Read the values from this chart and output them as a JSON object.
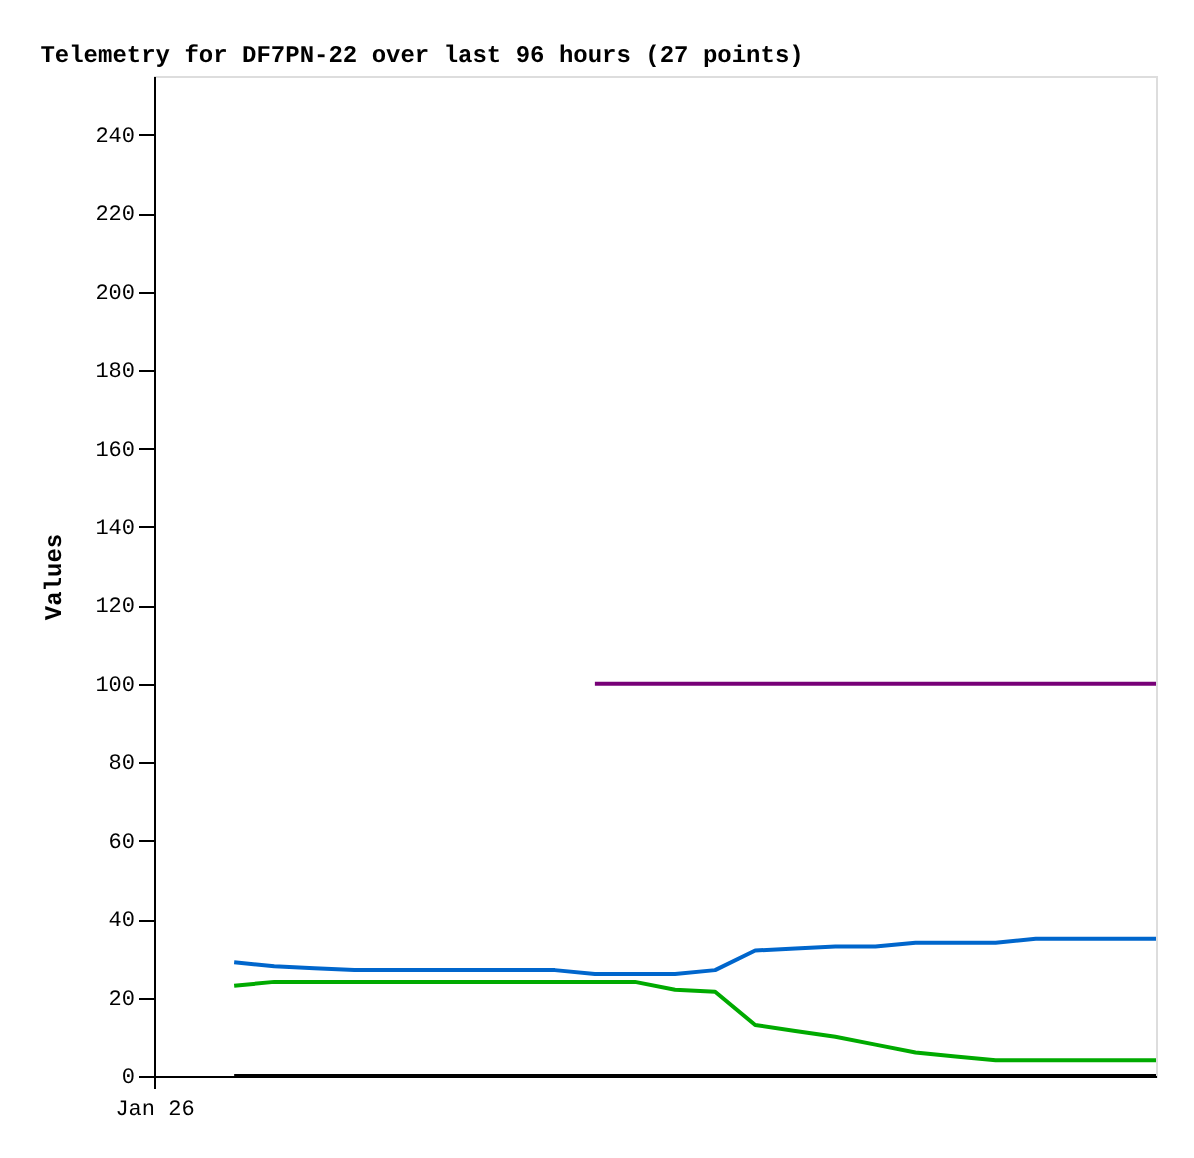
{
  "chart_data": {
    "type": "line",
    "title": "Telemetry for DF7PN-22 over last 96 hours (27 points)",
    "ylabel": "Values",
    "categories": [
      "Jan 26",
      null,
      null,
      null,
      null,
      null,
      null,
      null,
      null,
      null,
      null,
      null,
      null,
      null,
      null,
      null,
      null,
      null,
      null,
      null,
      null,
      null,
      null,
      null,
      null,
      null
    ],
    "series": [
      {
        "color": "#770077",
        "values": [
          null,
          null,
          null,
          null,
          null,
          null,
          null,
          null,
          null,
          null,
          null,
          100,
          100,
          100,
          100,
          100,
          100,
          100,
          100,
          100,
          100,
          100,
          100,
          100,
          100,
          100
        ]
      },
      {
        "color": "#0066cc",
        "values": [
          null,
          null,
          29,
          28,
          27.5,
          27,
          27,
          27,
          27,
          27,
          27,
          26,
          26,
          26,
          27,
          32,
          32.5,
          33,
          33,
          34,
          34,
          34,
          35,
          35,
          35,
          35
        ]
      },
      {
        "color": "#00aa00",
        "values": [
          null,
          null,
          23,
          24,
          24,
          24,
          24,
          24,
          24,
          24,
          24,
          24,
          24,
          22,
          21.5,
          13,
          11.5,
          10,
          8,
          6,
          5,
          4,
          4,
          4,
          4,
          4
        ]
      },
      {
        "color": "#000000",
        "values": [
          null,
          null,
          0,
          0,
          0,
          0,
          0,
          0,
          0,
          0,
          0,
          0,
          0,
          0,
          0,
          0,
          0,
          0,
          0,
          0,
          0,
          0,
          0,
          0,
          0,
          0
        ]
      }
    ],
    "ylim": [
      0,
      255
    ],
    "yticks": [
      0,
      20,
      40,
      60,
      80,
      100,
      120,
      140,
      160,
      180,
      200,
      220,
      240
    ],
    "grid": false,
    "legend": false,
    "marker": "none",
    "line_style": "solid"
  }
}
